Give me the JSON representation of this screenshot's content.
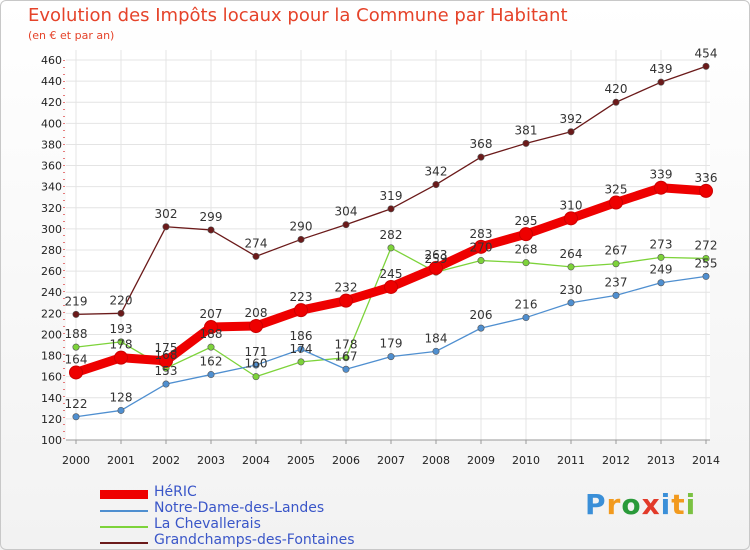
{
  "title": "Evolution des Impôts locaux pour la Commune par Habitant",
  "subtitle": "(en € et par an)",
  "brand": "Proxiti",
  "chart_data": {
    "type": "line",
    "title": "Evolution des Impôts locaux pour la Commune par Habitant",
    "subtitle": "(en € et par an)",
    "xlabel": "",
    "ylabel": "",
    "ylim": [
      100,
      460
    ],
    "yticks": [
      100,
      120,
      140,
      160,
      180,
      200,
      220,
      240,
      260,
      280,
      300,
      320,
      340,
      360,
      380,
      400,
      420,
      440,
      460
    ],
    "categories": [
      "2000",
      "2001",
      "2002",
      "2003",
      "2004",
      "2005",
      "2006",
      "2007",
      "2008",
      "2009",
      "2010",
      "2011",
      "2012",
      "2013",
      "2014"
    ],
    "legend_position": "bottom-left",
    "grid": true,
    "series": [
      {
        "name": "HéRIC",
        "color": "#ee0000",
        "values": [
          164,
          178,
          175,
          207,
          208,
          223,
          232,
          245,
          263,
          283,
          295,
          310,
          325,
          339,
          336
        ]
      },
      {
        "name": "Notre-Dame-des-Landes",
        "color": "#4f8fd0",
        "values": [
          122,
          128,
          153,
          162,
          171,
          186,
          167,
          179,
          184,
          206,
          216,
          230,
          237,
          249,
          255
        ]
      },
      {
        "name": "La Chevallerais",
        "color": "#7dd33a",
        "values": [
          188,
          193,
          168,
          188,
          160,
          174,
          178,
          282,
          259,
          270,
          268,
          264,
          267,
          273,
          272
        ]
      },
      {
        "name": "Grandchamps-des-Fontaines",
        "color": "#6b1a1a",
        "values": [
          219,
          220,
          302,
          299,
          274,
          290,
          304,
          319,
          342,
          368,
          381,
          392,
          420,
          439,
          454
        ]
      }
    ]
  }
}
